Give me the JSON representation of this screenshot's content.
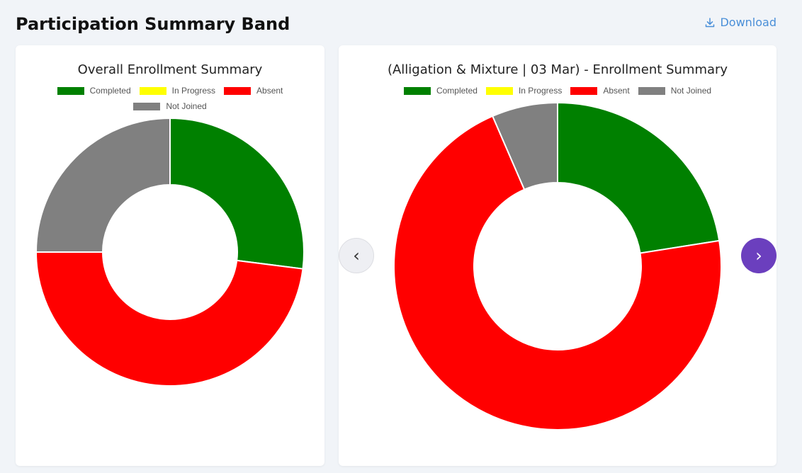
{
  "header": {
    "title": "Participation Summary Band",
    "download_label": "Download"
  },
  "legend_items": [
    {
      "label": "Completed",
      "color": "#008000"
    },
    {
      "label": "In Progress",
      "color": "#ffff00"
    },
    {
      "label": "Absent",
      "color": "#ff0000"
    },
    {
      "label": "Not Joined",
      "color": "#808080"
    }
  ],
  "navigation": {
    "prev_label": "‹",
    "next_label": "›"
  },
  "chart_data": [
    {
      "type": "pie",
      "title": "Overall Enrollment Summary",
      "donut": true,
      "categories": [
        "Completed",
        "In Progress",
        "Absent",
        "Not Joined"
      ],
      "values": [
        27,
        0,
        48,
        25
      ],
      "colors": [
        "#008000",
        "#ffff00",
        "#ff0000",
        "#808080"
      ]
    },
    {
      "type": "pie",
      "title": "(Alligation & Mixture | 03 Mar) - Enrollment Summary",
      "donut": true,
      "categories": [
        "Completed",
        "In Progress",
        "Absent",
        "Not Joined"
      ],
      "values": [
        22.5,
        0,
        71,
        6.5
      ],
      "colors": [
        "#008000",
        "#ffff00",
        "#ff0000",
        "#808080"
      ]
    }
  ]
}
